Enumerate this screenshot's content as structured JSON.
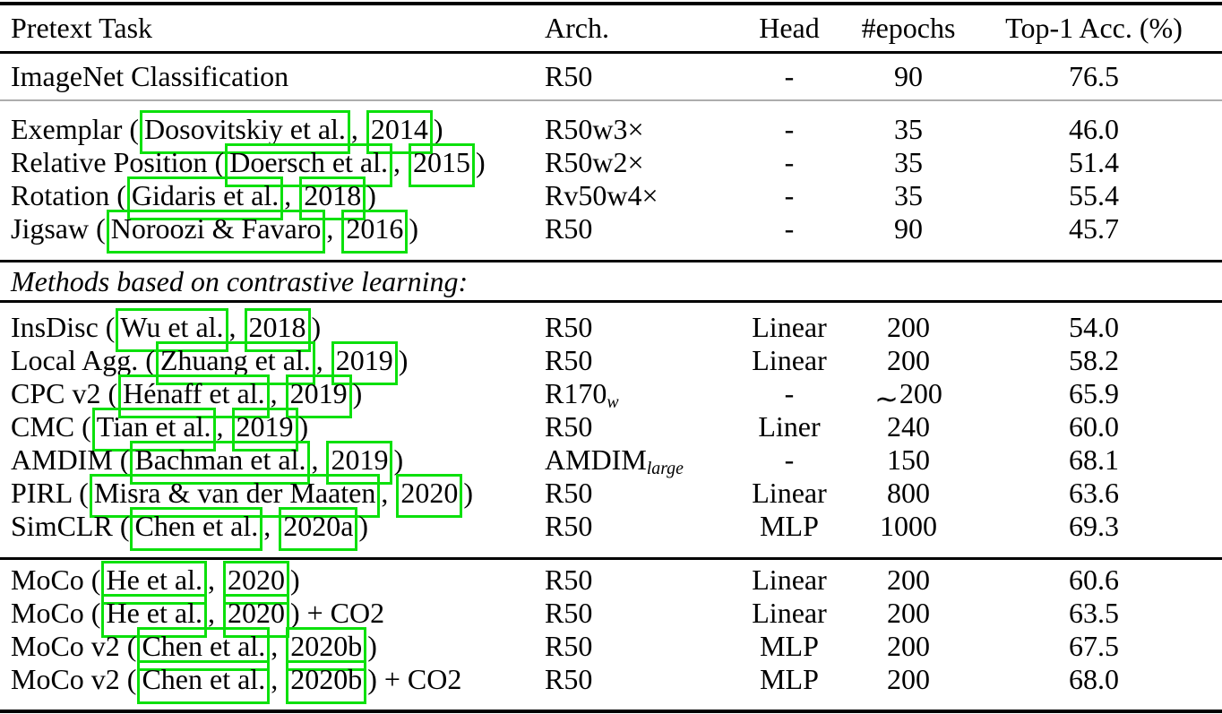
{
  "colors": {
    "link_box": "#0ce00c",
    "light_rule": "#adadad"
  },
  "table": {
    "columns": [
      "Pretext Task",
      "Arch.",
      "Head",
      "#epochs",
      "Top-1 Acc. (%)"
    ],
    "sections": [
      {
        "rows": [
          {
            "task": {
              "pre": "ImageNet Classification"
            },
            "arch": {
              "text": "R50"
            },
            "head": "-",
            "epochs": {
              "val": "90"
            },
            "acc": "76.5"
          }
        ]
      },
      {
        "rows": [
          {
            "task": {
              "pre": "Exemplar (",
              "authors": "Dosovitskiy et al.",
              "sep": ", ",
              "year": "2014",
              "post": ")"
            },
            "arch": {
              "text": "R50w3×"
            },
            "head": "-",
            "epochs": {
              "val": "35"
            },
            "acc": "46.0"
          },
          {
            "task": {
              "pre": "Relative Position (",
              "authors": "Doersch et al.",
              "sep": ", ",
              "year": "2015",
              "post": ")"
            },
            "arch": {
              "text": "R50w2×"
            },
            "head": "-",
            "epochs": {
              "val": "35"
            },
            "acc": "51.4"
          },
          {
            "task": {
              "pre": "Rotation (",
              "authors": "Gidaris et al.",
              "sep": ", ",
              "year": "2018",
              "post": ")"
            },
            "arch": {
              "text": "Rv50w4×"
            },
            "head": "-",
            "epochs": {
              "val": "35"
            },
            "acc": "55.4"
          },
          {
            "task": {
              "pre": "Jigsaw (",
              "authors": "Noroozi & Favaro",
              "sep": ", ",
              "year": "2016",
              "post": ")"
            },
            "arch": {
              "text": "R50"
            },
            "head": "-",
            "epochs": {
              "val": "90"
            },
            "acc": "45.7"
          }
        ]
      },
      {
        "label": "Methods based on contrastive learning:"
      },
      {
        "rows": [
          {
            "task": {
              "pre": "InsDisc (",
              "authors": "Wu et al.",
              "sep": ", ",
              "year": "2018",
              "post": ")"
            },
            "arch": {
              "text": "R50"
            },
            "head": "Linear",
            "epochs": {
              "val": "200"
            },
            "acc": "54.0"
          },
          {
            "task": {
              "pre": "Local Agg. (",
              "authors": "Zhuang et al.",
              "sep": ", ",
              "year": "2019",
              "post": ")"
            },
            "arch": {
              "text": "R50"
            },
            "head": "Linear",
            "epochs": {
              "val": "200"
            },
            "acc": "58.2"
          },
          {
            "task": {
              "pre": "CPC v2 (",
              "authors": "Hénaff et al.",
              "sep": ", ",
              "year": "2019",
              "post": ")"
            },
            "arch": {
              "text": "R170",
              "sub": "w"
            },
            "head": "-",
            "epochs": {
              "sim": "∼",
              "val": "200"
            },
            "acc": "65.9"
          },
          {
            "task": {
              "pre": "CMC (",
              "authors": "Tian et al.",
              "sep": ", ",
              "year": "2019",
              "post": ")"
            },
            "arch": {
              "text": "R50"
            },
            "head": "Liner",
            "epochs": {
              "val": "240"
            },
            "acc": "60.0"
          },
          {
            "task": {
              "pre": "AMDIM (",
              "authors": "Bachman et al.",
              "sep": ", ",
              "year": "2019",
              "post": ")"
            },
            "arch": {
              "text": "AMDIM",
              "sub": "large"
            },
            "head": "-",
            "epochs": {
              "val": "150"
            },
            "acc": "68.1"
          },
          {
            "task": {
              "pre": "PIRL (",
              "authors": "Misra & van der Maaten",
              "sep": ", ",
              "year": "2020",
              "post": ")"
            },
            "arch": {
              "text": "R50"
            },
            "head": "Linear",
            "epochs": {
              "val": "800"
            },
            "acc": "63.6"
          },
          {
            "task": {
              "pre": "SimCLR (",
              "authors": "Chen et al.",
              "sep": ", ",
              "year": "2020a",
              "post": ")"
            },
            "arch": {
              "text": "R50"
            },
            "head": "MLP",
            "epochs": {
              "val": "1000"
            },
            "acc": "69.3"
          }
        ]
      },
      {
        "rows": [
          {
            "task": {
              "pre": "MoCo (",
              "authors": "He et al.",
              "sep": ", ",
              "year": "2020",
              "post": ")"
            },
            "arch": {
              "text": "R50"
            },
            "head": "Linear",
            "epochs": {
              "val": "200"
            },
            "acc": "60.6"
          },
          {
            "task": {
              "pre": "MoCo (",
              "authors": "He et al.",
              "sep": ", ",
              "year": "2020",
              "post": ") + CO2"
            },
            "arch": {
              "text": "R50"
            },
            "head": "Linear",
            "epochs": {
              "val": "200"
            },
            "acc": "63.5"
          },
          {
            "task": {
              "pre": "MoCo v2 (",
              "authors": "Chen et al.",
              "sep": ", ",
              "year": "2020b",
              "post": ")"
            },
            "arch": {
              "text": "R50"
            },
            "head": "MLP",
            "epochs": {
              "val": "200"
            },
            "acc": "67.5"
          },
          {
            "task": {
              "pre": "MoCo v2 (",
              "authors": "Chen et al.",
              "sep": ", ",
              "year": "2020b",
              "post": ") + CO2"
            },
            "arch": {
              "text": "R50"
            },
            "head": "MLP",
            "epochs": {
              "val": "200"
            },
            "acc": "68.0"
          }
        ]
      }
    ]
  }
}
